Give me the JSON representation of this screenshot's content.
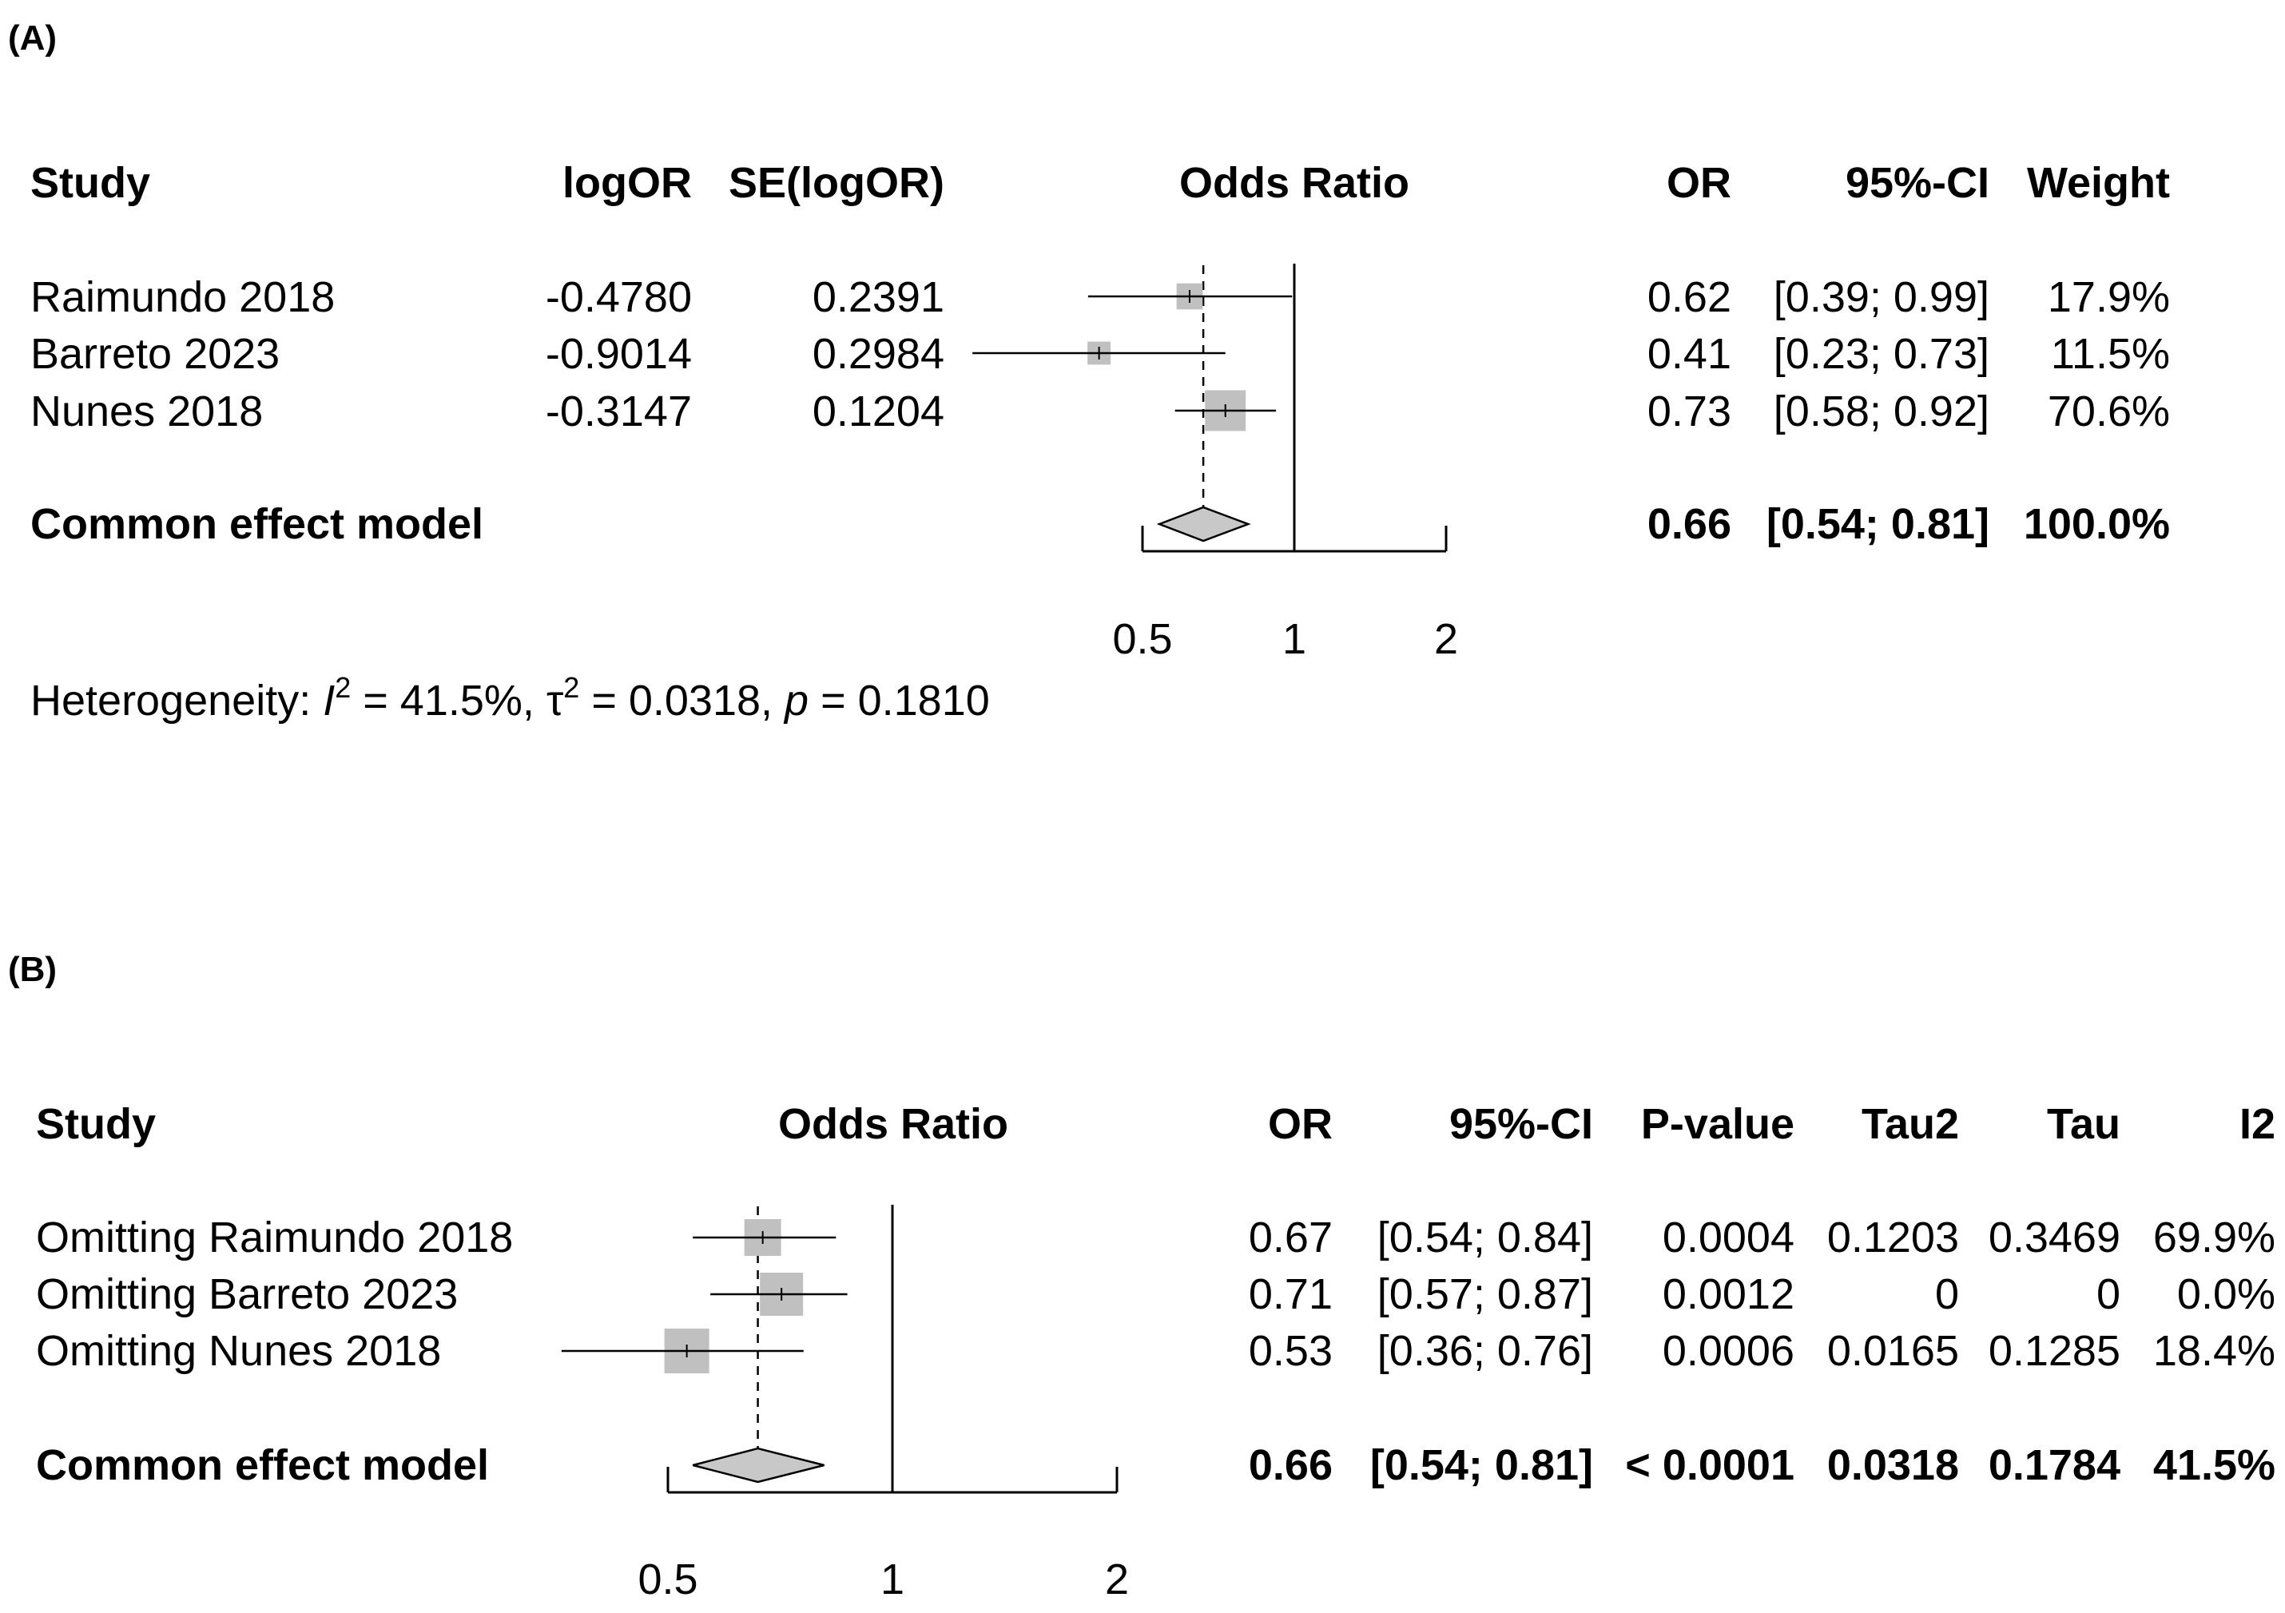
{
  "colors": {
    "box": "#c0c0c0",
    "diamond": "#c8c8c8",
    "line": "#000000"
  },
  "chart_data": [
    {
      "type": "forest",
      "panel_label": "(A)",
      "title": "Odds Ratio",
      "x_scale": "log",
      "xlim": [
        0.5,
        2
      ],
      "ticks": [
        0.5,
        1,
        2
      ],
      "tick_labels": [
        "0.5",
        "1",
        "2"
      ],
      "null_value": 1,
      "headers": {
        "study": "Study",
        "logor": "logOR",
        "se": "SE(logOR)",
        "or": "OR",
        "ci": "95%-CI",
        "weight": "Weight"
      },
      "studies": [
        {
          "label": "Raimundo 2018",
          "logor": "-0.4780",
          "se": "0.2391",
          "or": 0.62,
          "lower": 0.39,
          "upper": 0.99,
          "or_text": "0.62",
          "ci_text": "[0.39; 0.99]",
          "weight_text": "17.9%",
          "weight": 17.9
        },
        {
          "label": "Barreto 2023",
          "logor": "-0.9014",
          "se": "0.2984",
          "or": 0.41,
          "lower": 0.23,
          "upper": 0.73,
          "or_text": "0.41",
          "ci_text": "[0.23; 0.73]",
          "weight_text": "11.5%",
          "weight": 11.5
        },
        {
          "label": "Nunes 2018",
          "logor": "-0.3147",
          "se": "0.1204",
          "or": 0.73,
          "lower": 0.58,
          "upper": 0.92,
          "or_text": "0.73",
          "ci_text": "[0.58; 0.92]",
          "weight_text": "70.6%",
          "weight": 70.6
        }
      ],
      "summary": {
        "label": "Common effect model",
        "or": 0.66,
        "lower": 0.54,
        "upper": 0.81,
        "or_text": "0.66",
        "ci_text": "[0.54; 0.81]",
        "weight_text": "100.0%"
      },
      "heterogeneity": {
        "prefix": "Heterogeneity: ",
        "i_symbol": "I",
        "sup": "2",
        "i2_text": " = 41.5%, ",
        "tau_symbol": "τ",
        "tau_text": " = 0.0318, ",
        "p_symbol": "p",
        "p_text": " = 0.1810"
      }
    },
    {
      "type": "forest",
      "panel_label": "(B)",
      "title": "Odds Ratio",
      "x_scale": "log",
      "xlim": [
        0.5,
        2
      ],
      "ticks": [
        0.5,
        1,
        2
      ],
      "tick_labels": [
        "0.5",
        "1",
        "2"
      ],
      "null_value": 1,
      "headers": {
        "study": "Study",
        "or": "OR",
        "ci": "95%-CI",
        "p": "P-value",
        "tau2": "Tau2",
        "tau": "Tau",
        "i2": "I2"
      },
      "studies": [
        {
          "label": "Omitting Raimundo 2018",
          "or": 0.67,
          "lower": 0.54,
          "upper": 0.84,
          "or_text": "0.67",
          "ci_text": "[0.54; 0.84]",
          "p_text": "0.0004",
          "tau2_text": "0.1203",
          "tau_text": "0.3469",
          "i2_text": "69.9%"
        },
        {
          "label": "Omitting Barreto 2023",
          "or": 0.71,
          "lower": 0.57,
          "upper": 0.87,
          "or_text": "0.71",
          "ci_text": "[0.57; 0.87]",
          "p_text": "0.0012",
          "tau2_text": "0",
          "tau_text": "0",
          "i2_text": "0.0%"
        },
        {
          "label": "Omitting Nunes 2018",
          "or": 0.53,
          "lower": 0.36,
          "upper": 0.76,
          "or_text": "0.53",
          "ci_text": "[0.36; 0.76]",
          "p_text": "0.0006",
          "tau2_text": "0.0165",
          "tau_text": "0.1285",
          "i2_text": "18.4%"
        }
      ],
      "summary": {
        "label": "Common effect model",
        "or": 0.66,
        "lower": 0.54,
        "upper": 0.81,
        "or_text": "0.66",
        "ci_text": "[0.54; 0.81]",
        "p_text": "< 0.0001",
        "tau2_text": "0.0318",
        "tau_text": "0.1784",
        "i2_text": "41.5%"
      }
    }
  ]
}
